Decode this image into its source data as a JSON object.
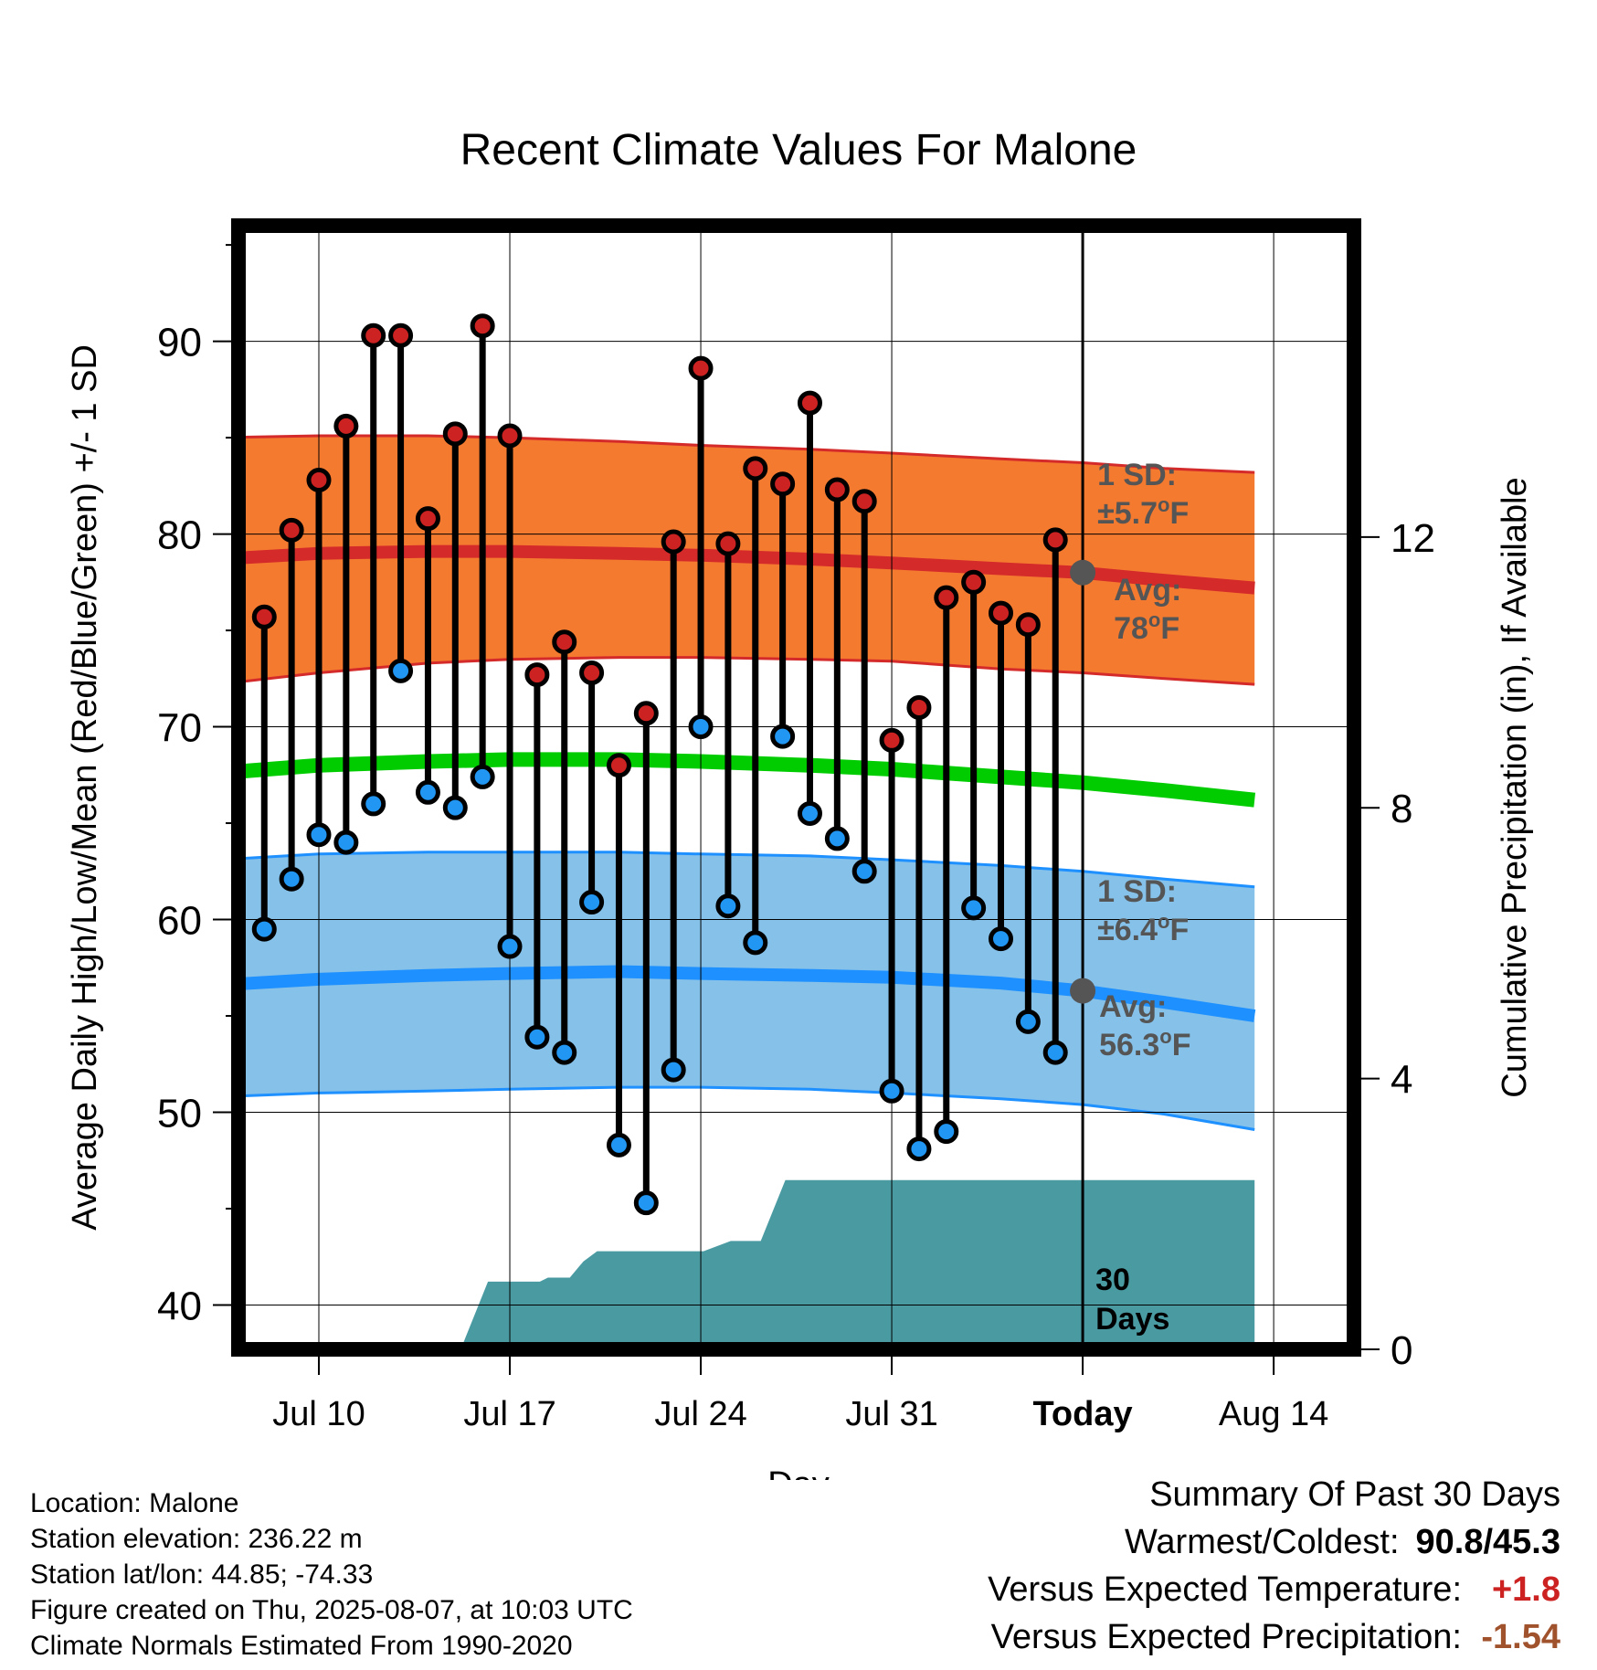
{
  "chart_data": {
    "type": "line",
    "title": "Recent Climate Values For Malone",
    "xlabel": "Day",
    "ylabel": "Average Daily High/Low/Mean (Red/Blue/Green) +/- 1 SD",
    "y2label": "Cumulative Precipitation (in), If Available",
    "ylim": [
      37.7,
      96
    ],
    "y2lim": [
      0,
      16.6
    ],
    "xlim": [
      6.3,
      44.3
    ],
    "x_unit": "day number counted from Jul 1",
    "x_ticks": [
      {
        "x": 10,
        "label": "Jul 10"
      },
      {
        "x": 17,
        "label": "Jul 17"
      },
      {
        "x": 24,
        "label": "Jul 24"
      },
      {
        "x": 31,
        "label": "Jul 31"
      },
      {
        "x": 38,
        "label": "Today"
      },
      {
        "x": 45,
        "label": "Aug 14"
      }
    ],
    "y_ticks": [
      40,
      50,
      60,
      70,
      80,
      90
    ],
    "y2_ticks": [
      0,
      4,
      8,
      12
    ],
    "grid": true,
    "today_x": 38,
    "daily": {
      "x": [
        8,
        9,
        10,
        11,
        12,
        13,
        14,
        15,
        16,
        17,
        18,
        19,
        20,
        21,
        22,
        23,
        24,
        25,
        26,
        27,
        28,
        29,
        30,
        31,
        32,
        33,
        34,
        35,
        36,
        37
      ],
      "high": [
        75.7,
        80.2,
        82.8,
        85.6,
        90.3,
        90.3,
        80.8,
        85.2,
        90.8,
        85.1,
        72.7,
        74.4,
        72.8,
        68.0,
        70.7,
        79.6,
        88.6,
        79.5,
        83.4,
        82.6,
        86.8,
        82.3,
        81.7,
        69.3,
        71.0,
        76.7,
        77.5,
        75.9,
        75.3,
        79.7
      ],
      "low": [
        59.5,
        62.1,
        64.4,
        64.0,
        66.0,
        72.9,
        66.6,
        65.8,
        67.4,
        58.6,
        53.9,
        53.1,
        60.9,
        48.3,
        45.3,
        52.2,
        70.0,
        60.7,
        58.8,
        69.5,
        65.5,
        64.2,
        62.5,
        51.1,
        48.1,
        49.0,
        60.6,
        59.0,
        54.7,
        53.1
      ]
    },
    "normal_high": {
      "x": [
        6.3,
        10,
        14,
        17,
        21,
        24,
        28,
        31,
        35,
        38,
        41,
        44.3
      ],
      "mean": [
        78.7,
        79.0,
        79.1,
        79.1,
        79.0,
        78.9,
        78.7,
        78.5,
        78.2,
        78.0,
        77.6,
        77.2
      ],
      "lower": [
        72.2,
        72.8,
        73.3,
        73.5,
        73.6,
        73.6,
        73.5,
        73.4,
        73.0,
        72.8,
        72.5,
        72.2
      ],
      "upper": [
        85.0,
        85.1,
        85.1,
        85.0,
        84.8,
        84.6,
        84.4,
        84.2,
        83.9,
        83.7,
        83.4,
        83.2
      ]
    },
    "normal_low": {
      "x": [
        6.3,
        10,
        14,
        17,
        21,
        24,
        28,
        31,
        35,
        38,
        41,
        44.3
      ],
      "mean": [
        56.6,
        56.9,
        57.1,
        57.2,
        57.3,
        57.2,
        57.1,
        57.0,
        56.7,
        56.3,
        55.7,
        55.0
      ],
      "lower": [
        50.8,
        51.0,
        51.1,
        51.2,
        51.3,
        51.3,
        51.2,
        51.0,
        50.7,
        50.4,
        49.9,
        49.1
      ],
      "upper": [
        63.1,
        63.4,
        63.5,
        63.5,
        63.5,
        63.4,
        63.3,
        63.1,
        62.8,
        62.5,
        62.1,
        61.7
      ]
    },
    "normal_mean": {
      "x": [
        6.3,
        10,
        14,
        17,
        21,
        24,
        28,
        31,
        35,
        38,
        41,
        44.3
      ],
      "mean": [
        67.6,
        68.0,
        68.2,
        68.3,
        68.3,
        68.2,
        68.0,
        67.8,
        67.4,
        67.1,
        66.7,
        66.2
      ]
    },
    "precip_cumulative": {
      "x": [
        15.2,
        16.2,
        18.1,
        18.4,
        19.2,
        19.7,
        20.2,
        23.1,
        24.1,
        25.1,
        26.1,
        26.2,
        27.1,
        28.1,
        44.3
      ],
      "y": [
        0,
        1.0,
        1.0,
        1.06,
        1.06,
        1.3,
        1.45,
        1.45,
        1.45,
        1.6,
        1.6,
        1.6,
        2.5,
        2.5,
        2.5
      ]
    },
    "annotations": {
      "high_sd_line1": "1 SD:",
      "high_sd_line2": "±5.7",
      "high_sd_unit": "F",
      "high_avg_line1": "Avg:",
      "high_avg_line2": "78",
      "high_avg_unit": "F",
      "low_sd_line1": "1 SD:",
      "low_sd_line2": "±6.4",
      "low_sd_unit": "F",
      "low_avg_line1": "Avg:",
      "low_avg_line2": "56.3",
      "low_avg_unit": "F",
      "degree_symbol": "o",
      "precip_days_line1": "30",
      "precip_days_line2": "Days",
      "high_avg_value": 78,
      "low_avg_value": 56.3
    },
    "colors": {
      "high_marker": "#cc2222",
      "low_marker": "#2196f3",
      "high_band": "#f47a30",
      "high_line": "#d42a2a",
      "low_band": "#85c1e9",
      "low_line": "#1e90ff",
      "mean_line": "#00cc00",
      "precip": "#4a9aa2",
      "annotation": "#555555"
    }
  },
  "footer": {
    "location": "Location: Malone",
    "elevation": "Station elevation: 236.22 m",
    "latlon": "Station lat/lon: 44.85; -74.33",
    "created": "Figure created on Thu, 2025-08-07, at 10:03 UTC",
    "normals": "Climate Normals Estimated From 1990-2020"
  },
  "summary": {
    "title": "Summary Of Past 30 Days",
    "warm_cold_label": "Warmest/Coldest:",
    "warm_cold_value": "90.8/45.3",
    "temp_label": "Versus Expected Temperature:",
    "temp_value": "+1.8",
    "temp_color": "#cc2222",
    "precip_label": "Versus Expected Precipitation:",
    "precip_value": "-1.54",
    "precip_color": "#a0522d"
  }
}
